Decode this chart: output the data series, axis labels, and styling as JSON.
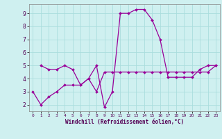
{
  "xlabel": "Windchill (Refroidissement éolien,°C)",
  "xlim": [
    -0.5,
    23.5
  ],
  "ylim": [
    1.5,
    9.7
  ],
  "yticks": [
    2,
    3,
    4,
    5,
    6,
    7,
    8,
    9
  ],
  "xticks": [
    0,
    1,
    2,
    3,
    4,
    5,
    6,
    7,
    8,
    9,
    10,
    11,
    12,
    13,
    14,
    15,
    16,
    17,
    18,
    19,
    20,
    21,
    22,
    23
  ],
  "bg_color": "#cff0f0",
  "grid_color": "#aadddd",
  "line_color": "#990099",
  "line1_x": [
    0,
    1,
    2,
    3,
    4,
    5,
    6,
    7,
    8,
    9,
    10,
    11,
    12,
    13,
    14,
    15,
    16,
    17,
    18,
    19,
    20,
    21,
    22,
    23
  ],
  "line1_y": [
    3.0,
    2.0,
    2.6,
    3.0,
    3.5,
    3.5,
    3.5,
    4.0,
    3.0,
    4.5,
    4.5,
    4.5,
    4.5,
    4.5,
    4.5,
    4.5,
    4.5,
    4.5,
    4.5,
    4.5,
    4.5,
    4.5,
    4.5,
    5.0
  ],
  "line2_x": [
    1,
    2,
    3,
    4,
    5,
    6,
    7,
    8,
    9,
    10,
    11,
    12,
    13,
    14,
    15,
    16,
    17,
    18,
    19,
    20,
    21,
    22,
    23
  ],
  "line2_y": [
    5.0,
    4.7,
    4.7,
    5.0,
    4.7,
    3.5,
    4.0,
    5.0,
    1.8,
    3.0,
    9.0,
    9.0,
    9.3,
    9.3,
    8.5,
    7.0,
    4.1,
    4.1,
    4.1,
    4.1,
    4.7,
    5.0,
    5.0
  ]
}
